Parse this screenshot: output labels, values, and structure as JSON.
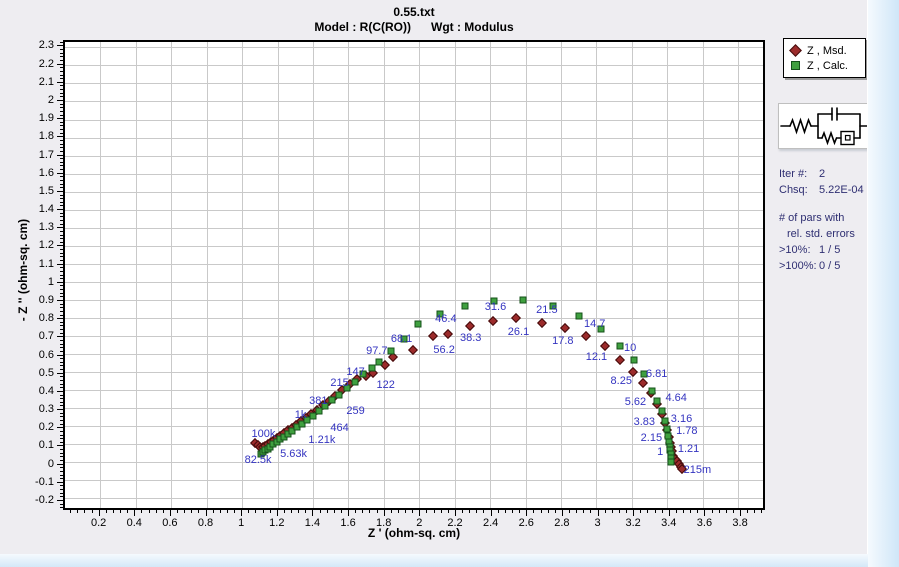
{
  "window": {
    "background": "#eeedf1",
    "accent_strip": "#d2e7f9"
  },
  "title": {
    "line1": "0.55.txt",
    "line2": "Model : R(C(RO))      Wgt : Modulus"
  },
  "legend": {
    "items": [
      {
        "label": "Z , Msd.",
        "marker": "diamond",
        "color": "#9c2b2b"
      },
      {
        "label": "Z , Calc.",
        "marker": "square",
        "color": "#3fa03f"
      }
    ]
  },
  "circuit_icon": {
    "name": "equivalent-circuit-R(C(RO))"
  },
  "info_panel": {
    "iter_label": "Iter #:",
    "iter_value": "2",
    "chsq_label": "Chsq:",
    "chsq_value": "5.22E-04",
    "pars_line1": "# of pars with",
    "pars_line2": "rel. std. errors",
    "gt10_label": ">10%:",
    "gt10_value": "1 / 5",
    "gt100_label": ">100%:",
    "gt100_value": "0 / 5"
  },
  "chart_data": {
    "type": "scatter",
    "title": "0.55.txt",
    "subtitle": "Model : R(C(RO))   Wgt : Modulus",
    "xlabel": "Z ' (ohm-sq. cm)",
    "ylabel": "- Z '' (ohm-sq. cm)",
    "xlim": [
      0.0,
      3.94
    ],
    "ylim": [
      -0.255,
      2.33
    ],
    "grid": true,
    "legend_position": "top-right-outside",
    "label_color": "#3434c0",
    "xticks": [
      [
        0.2,
        "0.2"
      ],
      [
        0.4,
        "0.4"
      ],
      [
        0.6,
        "0.6"
      ],
      [
        0.8,
        "0.8"
      ],
      [
        1,
        "1"
      ],
      [
        1.2,
        "1.2"
      ],
      [
        1.4,
        "1.4"
      ],
      [
        1.6,
        "1.6"
      ],
      [
        1.8,
        "1.8"
      ],
      [
        2,
        "2"
      ],
      [
        2.2,
        "2.2"
      ],
      [
        2.4,
        "2.4"
      ],
      [
        2.6,
        "2.6"
      ],
      [
        2.8,
        "2.8"
      ],
      [
        3,
        "3"
      ],
      [
        3.2,
        "3.2"
      ],
      [
        3.4,
        "3.4"
      ],
      [
        3.6,
        "3.6"
      ],
      [
        3.8,
        "3.8"
      ]
    ],
    "yticks": [
      [
        2.3,
        "2.3"
      ],
      [
        2.2,
        "2.2"
      ],
      [
        2.1,
        "2.1"
      ],
      [
        2,
        "2"
      ],
      [
        1.9,
        "1.9"
      ],
      [
        1.8,
        "1.8"
      ],
      [
        1.7,
        "1.7"
      ],
      [
        1.6,
        "1.6"
      ],
      [
        1.5,
        "1.5"
      ],
      [
        1.4,
        "1.4"
      ],
      [
        1.3,
        "1.3"
      ],
      [
        1.2,
        "1.2"
      ],
      [
        1.1,
        "1.1"
      ],
      [
        1,
        "1"
      ],
      [
        0.9,
        "0.9"
      ],
      [
        0.8,
        "0.8"
      ],
      [
        0.7,
        "0.7"
      ],
      [
        0.6,
        "0.6"
      ],
      [
        0.5,
        "0.5"
      ],
      [
        0.4,
        "0.4"
      ],
      [
        0.3,
        "0.3"
      ],
      [
        0.2,
        "0.2"
      ],
      [
        0.1,
        "0.1"
      ],
      [
        0,
        "0"
      ],
      [
        -0.1,
        "-0.1"
      ],
      [
        -0.2,
        "-0.2"
      ]
    ],
    "minor_tick_step_x": 0.04,
    "minor_tick_step_y": 0.02,
    "series": [
      {
        "name": "Z , Msd.",
        "marker": "diamond",
        "color": "#9c2b2b",
        "points": [
          [
            1.075,
            0.105
          ],
          [
            1.09,
            0.095
          ],
          [
            1.103,
            0.085
          ],
          [
            1.116,
            0.082
          ],
          [
            1.13,
            0.09
          ],
          [
            1.145,
            0.1
          ],
          [
            1.161,
            0.11
          ],
          [
            1.178,
            0.121
          ],
          [
            1.196,
            0.133
          ],
          [
            1.215,
            0.146
          ],
          [
            1.236,
            0.16
          ],
          [
            1.258,
            0.175
          ],
          [
            1.281,
            0.191
          ],
          [
            1.306,
            0.208
          ],
          [
            1.332,
            0.226
          ],
          [
            1.36,
            0.246
          ],
          [
            1.39,
            0.267
          ],
          [
            1.421,
            0.29
          ],
          [
            1.454,
            0.314
          ],
          [
            1.489,
            0.341
          ],
          [
            1.526,
            0.369
          ],
          [
            1.565,
            0.4
          ],
          [
            1.606,
            0.432
          ],
          [
            1.65,
            0.462
          ],
          [
            1.7,
            0.48
          ],
          [
            1.738,
            0.492
          ],
          [
            1.806,
            0.537
          ],
          [
            1.852,
            0.583
          ],
          [
            1.962,
            0.623
          ],
          [
            2.077,
            0.7
          ],
          [
            2.161,
            0.712
          ],
          [
            2.288,
            0.754
          ],
          [
            2.415,
            0.782
          ],
          [
            2.546,
            0.8
          ],
          [
            2.69,
            0.773
          ],
          [
            2.82,
            0.741
          ],
          [
            2.942,
            0.699
          ],
          [
            3.048,
            0.644
          ],
          [
            3.13,
            0.565
          ],
          [
            3.207,
            0.497
          ],
          [
            3.261,
            0.438
          ],
          [
            3.306,
            0.383
          ],
          [
            3.341,
            0.323
          ],
          [
            3.369,
            0.268
          ],
          [
            3.386,
            0.218
          ],
          [
            3.397,
            0.18
          ],
          [
            3.408,
            0.141
          ],
          [
            3.414,
            0.108
          ],
          [
            3.419,
            0.081
          ],
          [
            3.425,
            0.059
          ],
          [
            3.431,
            0.031
          ],
          [
            3.442,
            0.015
          ],
          [
            3.453,
            0.004
          ],
          [
            3.464,
            -0.012
          ],
          [
            3.475,
            -0.028
          ],
          [
            3.481,
            -0.04
          ]
        ]
      },
      {
        "name": "Z , Calc.",
        "marker": "square",
        "color": "#3fa03f",
        "points": [
          [
            1.107,
            0.046
          ],
          [
            1.118,
            0.055
          ],
          [
            1.13,
            0.065
          ],
          [
            1.144,
            0.075
          ],
          [
            1.159,
            0.086
          ],
          [
            1.176,
            0.098
          ],
          [
            1.194,
            0.111
          ],
          [
            1.214,
            0.125
          ],
          [
            1.235,
            0.14
          ],
          [
            1.258,
            0.156
          ],
          [
            1.282,
            0.173
          ],
          [
            1.308,
            0.192
          ],
          [
            1.336,
            0.212
          ],
          [
            1.366,
            0.234
          ],
          [
            1.398,
            0.258
          ],
          [
            1.432,
            0.284
          ],
          [
            1.468,
            0.312
          ],
          [
            1.506,
            0.342
          ],
          [
            1.547,
            0.374
          ],
          [
            1.59,
            0.409
          ],
          [
            1.636,
            0.446
          ],
          [
            1.684,
            0.486
          ],
          [
            1.735,
            0.52
          ],
          [
            1.773,
            0.554
          ],
          [
            1.84,
            0.615
          ],
          [
            1.913,
            0.681
          ],
          [
            1.99,
            0.764
          ],
          [
            2.115,
            0.819
          ],
          [
            2.26,
            0.864
          ],
          [
            2.419,
            0.896
          ],
          [
            2.587,
            0.897
          ],
          [
            2.755,
            0.868
          ],
          [
            2.904,
            0.809
          ],
          [
            3.026,
            0.74
          ],
          [
            3.13,
            0.644
          ],
          [
            3.212,
            0.565
          ],
          [
            3.268,
            0.488
          ],
          [
            3.315,
            0.396
          ],
          [
            3.343,
            0.337
          ],
          [
            3.369,
            0.284
          ],
          [
            3.386,
            0.229
          ],
          [
            3.397,
            0.185
          ],
          [
            3.402,
            0.146
          ],
          [
            3.408,
            0.113
          ],
          [
            3.414,
            0.086
          ],
          [
            3.416,
            0.064
          ],
          [
            3.418,
            0.042
          ],
          [
            3.42,
            0.02
          ],
          [
            3.421,
            0.0
          ]
        ]
      }
    ],
    "point_labels": [
      {
        "text": "100k",
        "x": 1.12,
        "y": 0.155
      },
      {
        "text": "82.5k",
        "x": 1.09,
        "y": 0.01
      },
      {
        "text": "5.63k",
        "x": 1.29,
        "y": 0.045
      },
      {
        "text": "1.21k",
        "x": 1.45,
        "y": 0.12
      },
      {
        "text": "1k",
        "x": 1.33,
        "y": 0.26
      },
      {
        "text": "381",
        "x": 1.43,
        "y": 0.34
      },
      {
        "text": "464",
        "x": 1.55,
        "y": 0.19
      },
      {
        "text": "259",
        "x": 1.64,
        "y": 0.285
      },
      {
        "text": "215",
        "x": 1.55,
        "y": 0.44
      },
      {
        "text": "147",
        "x": 1.64,
        "y": 0.5
      },
      {
        "text": "122",
        "x": 1.81,
        "y": 0.43
      },
      {
        "text": "97.7",
        "x": 1.76,
        "y": 0.615
      },
      {
        "text": "68.1",
        "x": 1.9,
        "y": 0.685
      },
      {
        "text": "56.2",
        "x": 2.14,
        "y": 0.62
      },
      {
        "text": "46.4",
        "x": 2.15,
        "y": 0.795
      },
      {
        "text": "38.3",
        "x": 2.29,
        "y": 0.69
      },
      {
        "text": "31.6",
        "x": 2.43,
        "y": 0.86
      },
      {
        "text": "26.1",
        "x": 2.56,
        "y": 0.72
      },
      {
        "text": "21.5",
        "x": 2.72,
        "y": 0.845
      },
      {
        "text": "17.8",
        "x": 2.81,
        "y": 0.67
      },
      {
        "text": "14.7",
        "x": 2.99,
        "y": 0.765
      },
      {
        "text": "12.1",
        "x": 3.0,
        "y": 0.58
      },
      {
        "text": "10",
        "x": 3.19,
        "y": 0.63
      },
      {
        "text": "8.25",
        "x": 3.14,
        "y": 0.45
      },
      {
        "text": "6.81",
        "x": 3.34,
        "y": 0.49
      },
      {
        "text": "5.62",
        "x": 3.22,
        "y": 0.335
      },
      {
        "text": "4.64",
        "x": 3.45,
        "y": 0.355
      },
      {
        "text": "3.83",
        "x": 3.27,
        "y": 0.22
      },
      {
        "text": "3.16",
        "x": 3.48,
        "y": 0.24
      },
      {
        "text": "2.15",
        "x": 3.31,
        "y": 0.135
      },
      {
        "text": "1.78",
        "x": 3.51,
        "y": 0.17
      },
      {
        "text": "1.21",
        "x": 3.52,
        "y": 0.075
      },
      {
        "text": "1",
        "x": 3.36,
        "y": 0.057
      },
      {
        "text": "215m",
        "x": 3.57,
        "y": -0.045
      }
    ]
  }
}
